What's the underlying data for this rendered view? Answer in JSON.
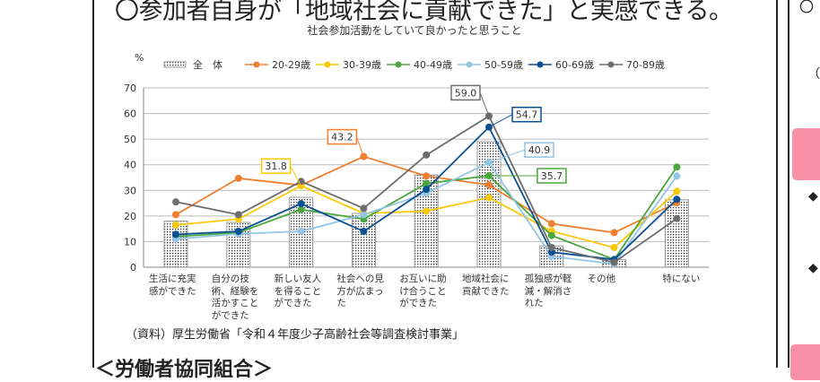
{
  "page": {
    "title": "〇参加者自身が「地域社会に貢献できた」と実感できる。",
    "source": "（資料）厚生労働省「令和４年度少子高齢社会等調査検討事業」",
    "section_heading": "＜労働者協同組合＞",
    "right_panel": {
      "note_fragment": "（※",
      "circle_glyph": "〇",
      "bullet_glyph": "◆",
      "accent_color": "#f990a8"
    }
  },
  "chart_data": {
    "type": "bar+line",
    "title": "社会参加活動をしていて良かったと思うこと",
    "ylabel": "%",
    "ylim": [
      0,
      70
    ],
    "yticks": [
      0,
      10,
      20,
      30,
      40,
      50,
      60,
      70
    ],
    "grid": true,
    "legend_placement": "top",
    "categories": [
      "生活に充実\n感ができた",
      "自分の技\n術、経験を\n活かすこと\nができた",
      "新しい友人\nを得ること\nができた",
      "社会への見\n方が広まっ\nた",
      "お互いに助\nけ合うこと\nができた",
      "地域社会に\n貢献できた",
      "孤独感が軽\n減・解消さ\nれた",
      "その他",
      "特にない"
    ],
    "bar_series": {
      "name": "全　体",
      "values": [
        18,
        17.5,
        27.3,
        21,
        36,
        49,
        8.3,
        3,
        26.3
      ],
      "pattern": "dotted"
    },
    "series": [
      {
        "name": "20-29歳",
        "color": "#f07e2c",
        "values": [
          20.5,
          34.7,
          32,
          43.2,
          35.6,
          32.1,
          17,
          13.5,
          25.2
        ]
      },
      {
        "name": "30-39歳",
        "color": "#fbc90a",
        "values": [
          16.5,
          18.8,
          31.8,
          21,
          21.9,
          27.2,
          14.1,
          7.7,
          29.6
        ]
      },
      {
        "name": "40-49歳",
        "color": "#4aa73c",
        "values": [
          12,
          13.5,
          22.5,
          18.8,
          32.7,
          35.7,
          12.4,
          3,
          39.1
        ]
      },
      {
        "name": "50-59歳",
        "color": "#93c5e6",
        "values": [
          11,
          13,
          14,
          20.5,
          28.9,
          40.9,
          4.2,
          1.3,
          35.6
        ]
      },
      {
        "name": "60-69歳",
        "color": "#0b4f93",
        "values": [
          12.8,
          14,
          24.8,
          14,
          30.4,
          54.7,
          5.9,
          3,
          26.5
        ]
      },
      {
        "name": "70-89歳",
        "color": "#6d6d6d",
        "values": [
          25.5,
          20.5,
          33.5,
          23,
          43.8,
          59.0,
          7.7,
          1.9,
          19
        ]
      }
    ],
    "annotations": [
      {
        "series": "30-39歳",
        "category_index": 2,
        "text": "31.8"
      },
      {
        "series": "20-29歳",
        "category_index": 3,
        "text": "43.2"
      },
      {
        "series": "70-89歳",
        "category_index": 5,
        "text": "59.0"
      },
      {
        "series": "60-69歳",
        "category_index": 5,
        "text": "54.7"
      },
      {
        "series": "50-59歳",
        "category_index": 5,
        "text": "40.9"
      },
      {
        "series": "40-49歳",
        "category_index": 5,
        "text": "35.7"
      }
    ]
  }
}
